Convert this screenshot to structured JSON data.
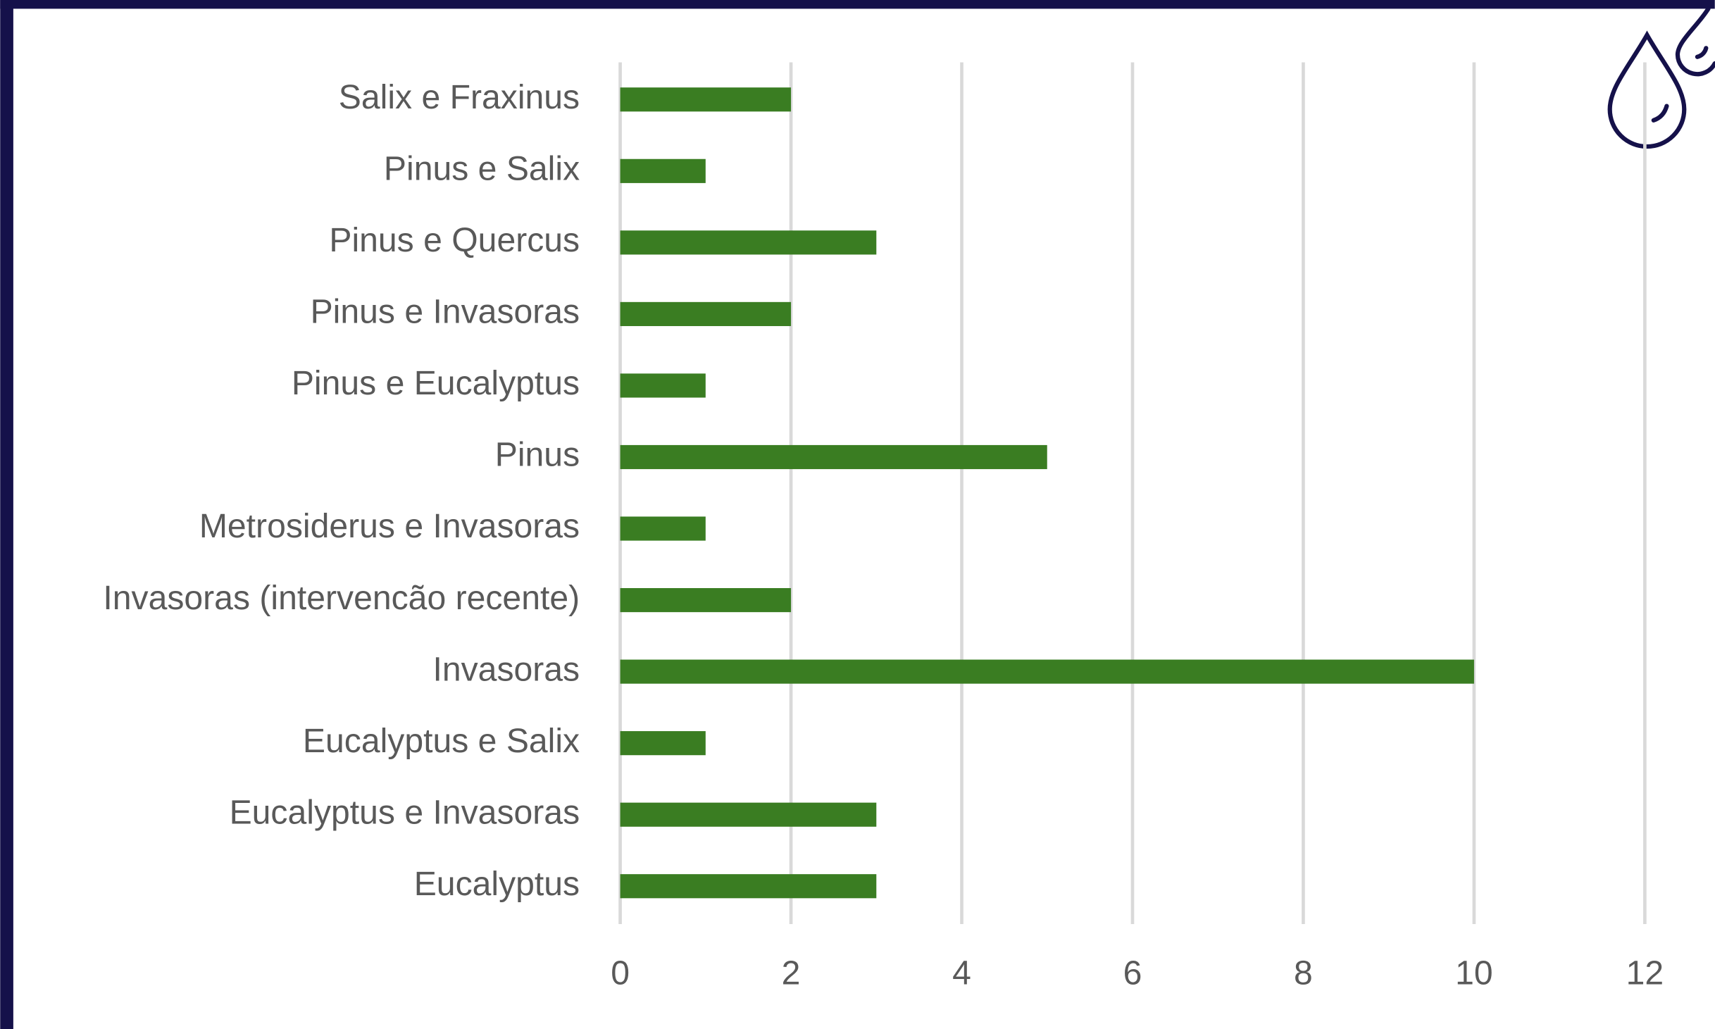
{
  "chart_data": {
    "type": "bar",
    "orientation": "horizontal",
    "categories": [
      "Salix e Fraxinus",
      "Pinus e Salix",
      "Pinus e Quercus",
      "Pinus e Invasoras",
      "Pinus e Eucalyptus",
      "Pinus",
      "Metrosiderus e Invasoras",
      "Invasoras (intervencão recente)",
      "Invasoras",
      "Eucalyptus e Salix",
      "Eucalyptus e Invasoras",
      "Eucalyptus"
    ],
    "values": [
      2,
      1,
      3,
      2,
      1,
      5,
      1,
      2,
      10,
      1,
      3,
      3
    ],
    "color": "#3a7d22",
    "xlim": [
      0,
      12
    ],
    "xticks": [
      0,
      2,
      4,
      6,
      8,
      10,
      12
    ],
    "grid": true
  }
}
